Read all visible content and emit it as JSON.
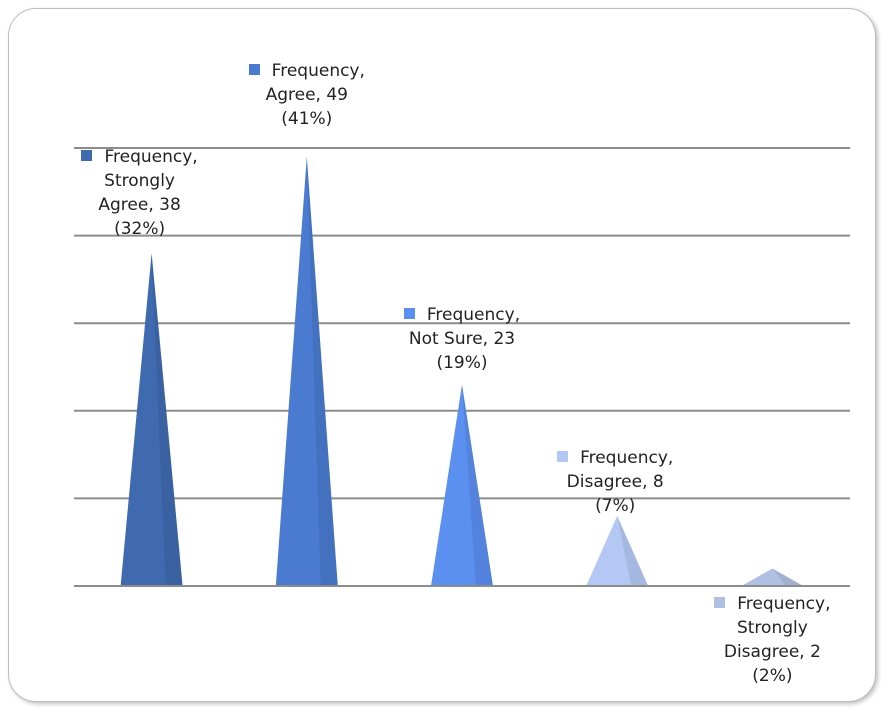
{
  "chart_data": {
    "type": "bar",
    "shape": "cone",
    "categories": [
      "Strongly Agree",
      "Agree",
      "Not Sure",
      "Disagree",
      "Strongly Disagree"
    ],
    "series": [
      {
        "name": "Frequency",
        "values": [
          38,
          49,
          23,
          8,
          2
        ],
        "percent_labels": [
          "32%",
          "41%",
          "19%",
          "7%",
          "2%"
        ]
      }
    ],
    "data_labels": [
      [
        "Frequency,",
        "Strongly",
        "Agree, 38",
        "(32%)"
      ],
      [
        "Frequency,",
        "Agree, 49",
        "(41%)"
      ],
      [
        "Frequency,",
        "Not Sure, 23",
        "(19%)"
      ],
      [
        "Frequency,",
        "Disagree, 8",
        "(7%)"
      ],
      [
        "Frequency,",
        "Strongly",
        "Disagree, 2",
        "(2%)"
      ]
    ],
    "colors": [
      "#3f6aaf",
      "#4a7bd0",
      "#5b8ff0",
      "#b3c8f5",
      "#b0c0e2"
    ],
    "ylim": [
      0,
      50
    ],
    "gridlines": [
      10,
      20,
      30,
      40,
      50
    ],
    "grid": true,
    "legend": "none"
  }
}
